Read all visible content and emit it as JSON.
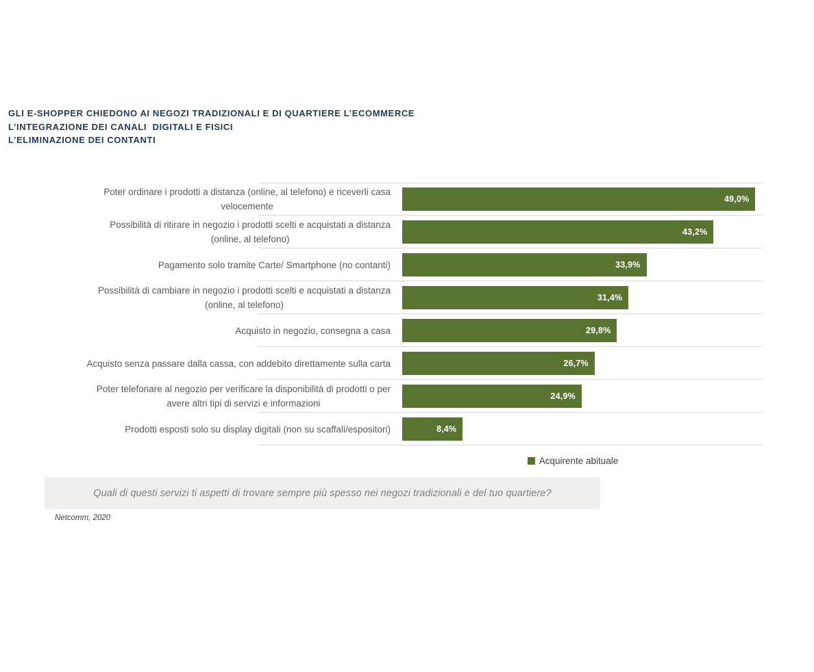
{
  "title": {
    "lines": [
      "GLI E-SHOPPER CHIEDONO AI NEGOZI TRADIZIONALI E DI QUARTIERE L’ECOMMERCE",
      "L’INTEGRAZIONE DEI CANALI  DIGITALI E FISICI",
      "L’ELIMINAZIONE DEI CONTANTI"
    ]
  },
  "chart_data": {
    "type": "bar",
    "orientation": "horizontal",
    "categories": [
      "Poter ordinare i prodotti a distanza (online, al telefono) e riceverli casa\nvelocemente",
      "Possibilità di ritirare in negozio i prodotti scelti e acquistati a distanza\n(online, al telefono)",
      "Pagamento solo tramite Carte/ Smartphone (no contanti)",
      "Possibilità di cambiare in negozio i prodotti scelti e acquistati a distanza\n(online, al telefono)",
      "Acquisto in negozio, consegna a casa",
      "Acquisto senza passare dalla cassa, con addebito direttamente sulla carta",
      "Poter telefonare al negozio per verificare la disponibilità di prodotti o per\navere altri tipi di servizi e informazioni",
      "Prodotti esposti solo su display digitali (non su scaffali/espositori)"
    ],
    "series": [
      {
        "name": "Acquirente abituale",
        "values": [
          49.0,
          43.2,
          33.9,
          31.4,
          29.8,
          26.7,
          24.9,
          8.4
        ],
        "data_labels": [
          "49,0%",
          "43,2%",
          "33,9%",
          "31,4%",
          "29,8%",
          "26,7%",
          "24,9%",
          "8,4%"
        ]
      }
    ],
    "xlim": [
      0,
      50
    ],
    "value_format": "percent with Italian decimal comma",
    "grid": "horizontal row separator lines only",
    "legend_position": "bottom-center"
  },
  "question": "Quali di questi servizi ti aspetti di trovare sempre più spesso nei negozi tradizionali e del tuo quartiere?",
  "source": "Netcomm, 2020",
  "colors": {
    "background": "#FFFFFF",
    "bar": "#597431",
    "title_text": "#1F3B5C",
    "category_text": "#595959",
    "grid_line": "#D9D9D9",
    "value_text": "#FFFFFF",
    "legend_text": "#404040",
    "question_bg": "#F0EFED",
    "question_text": "#7F7F7F",
    "source_text": "#404040"
  }
}
